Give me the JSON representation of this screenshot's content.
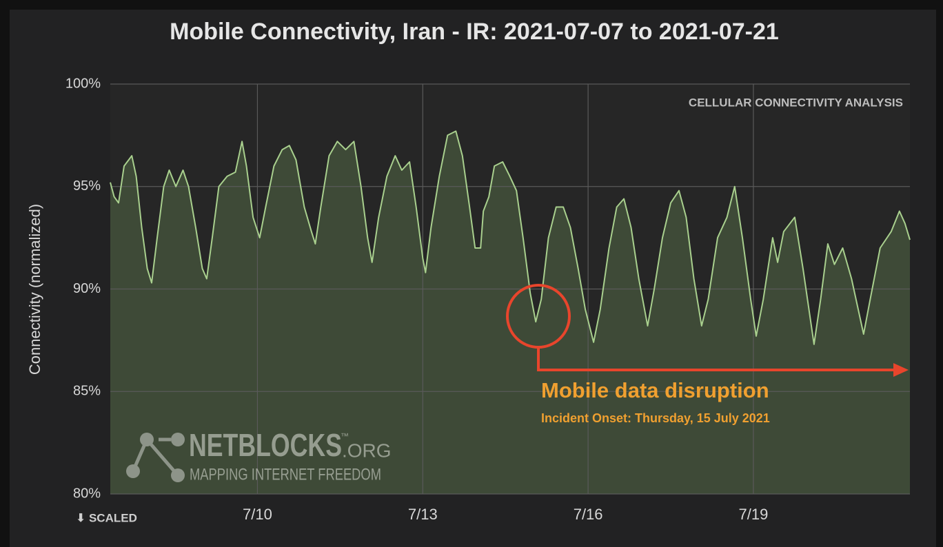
{
  "chart_data": {
    "type": "area",
    "title": "Mobile Connectivity, Iran - IR: 2021-07-07 to 2021-07-21",
    "y_label": "Connectivity (normalized)",
    "corner_note": "CELLULAR CONNECTIVITY ANALYSIS",
    "scale_note": "⬇ SCALED",
    "annotation": {
      "title": "Mobile data disruption",
      "subtitle": "Incident Onset: Thursday, 15 July 2021"
    },
    "watermark": {
      "name": "NETBLOCKS",
      "tm": "™",
      "suffix": ".ORG",
      "tagline": "MAPPING INTERNET FREEDOM"
    },
    "color": "#a9d08e",
    "area_color": "#3e4a37",
    "grid": true,
    "xlim": [
      7.33,
      21.84
    ],
    "xticks": [
      {
        "value": 10,
        "label": "7/10"
      },
      {
        "value": 13,
        "label": "7/13"
      },
      {
        "value": 16,
        "label": "7/16"
      },
      {
        "value": 19,
        "label": "7/19"
      }
    ],
    "ylim": [
      80,
      100
    ],
    "yticks": [
      {
        "value": 80,
        "label": "80%"
      },
      {
        "value": 85,
        "label": "85%"
      },
      {
        "value": 90,
        "label": "90%"
      },
      {
        "value": 95,
        "label": "95%"
      },
      {
        "value": 100,
        "label": "100%"
      }
    ],
    "x": [
      7.33,
      7.4,
      7.48,
      7.58,
      7.72,
      7.8,
      7.9,
      8.0,
      8.08,
      8.18,
      8.3,
      8.4,
      8.52,
      8.65,
      8.75,
      8.88,
      9.0,
      9.08,
      9.18,
      9.3,
      9.45,
      9.6,
      9.72,
      9.8,
      9.92,
      10.04,
      10.15,
      10.3,
      10.45,
      10.58,
      10.7,
      10.85,
      10.98,
      11.05,
      11.15,
      11.3,
      11.45,
      11.6,
      11.75,
      11.88,
      12.0,
      12.08,
      12.2,
      12.35,
      12.5,
      12.62,
      12.76,
      12.88,
      13.0,
      13.05,
      13.15,
      13.3,
      13.45,
      13.6,
      13.72,
      13.85,
      13.95,
      14.05,
      14.1,
      14.2,
      14.3,
      14.45,
      14.58,
      14.7,
      14.82,
      14.95,
      15.05,
      15.15,
      15.28,
      15.42,
      15.55,
      15.68,
      15.82,
      15.95,
      16.1,
      16.22,
      16.38,
      16.52,
      16.65,
      16.78,
      16.92,
      17.08,
      17.2,
      17.35,
      17.5,
      17.65,
      17.78,
      17.92,
      18.06,
      18.18,
      18.35,
      18.52,
      18.66,
      18.8,
      18.95,
      19.05,
      19.18,
      19.35,
      19.44,
      19.55,
      19.75,
      19.9,
      20.1,
      20.22,
      20.35,
      20.47,
      20.62,
      20.78,
      21.0,
      21.12,
      21.3,
      21.5,
      21.65,
      21.75,
      21.84
    ],
    "values": [
      95.2,
      94.5,
      94.2,
      96.0,
      96.5,
      95.5,
      93.0,
      91.0,
      90.3,
      92.5,
      95.0,
      95.8,
      95.0,
      95.8,
      95.0,
      93.0,
      91.0,
      90.5,
      92.5,
      95.0,
      95.5,
      95.7,
      97.2,
      96.0,
      93.5,
      92.5,
      94.0,
      96.0,
      96.8,
      97.0,
      96.3,
      94.0,
      92.8,
      92.2,
      94.0,
      96.5,
      97.2,
      96.8,
      97.2,
      95.0,
      92.5,
      91.3,
      93.5,
      95.5,
      96.5,
      95.8,
      96.2,
      94.0,
      91.5,
      90.8,
      93.0,
      95.5,
      97.5,
      97.7,
      96.5,
      94.0,
      92.0,
      92.0,
      93.8,
      94.5,
      96.0,
      96.2,
      95.5,
      94.8,
      92.5,
      89.8,
      88.4,
      89.5,
      92.5,
      94.0,
      94.0,
      93.0,
      91.0,
      89.0,
      87.4,
      89.0,
      92.0,
      94.0,
      94.4,
      93.0,
      90.5,
      88.2,
      90.0,
      92.5,
      94.2,
      94.8,
      93.5,
      90.5,
      88.2,
      89.5,
      92.5,
      93.5,
      95.0,
      92.5,
      89.5,
      87.7,
      89.5,
      92.5,
      91.3,
      92.8,
      93.5,
      91.0,
      87.3,
      89.5,
      92.2,
      91.2,
      92.0,
      90.5,
      87.8,
      89.5,
      92.0,
      92.8,
      93.8,
      93.2,
      92.4
    ]
  }
}
